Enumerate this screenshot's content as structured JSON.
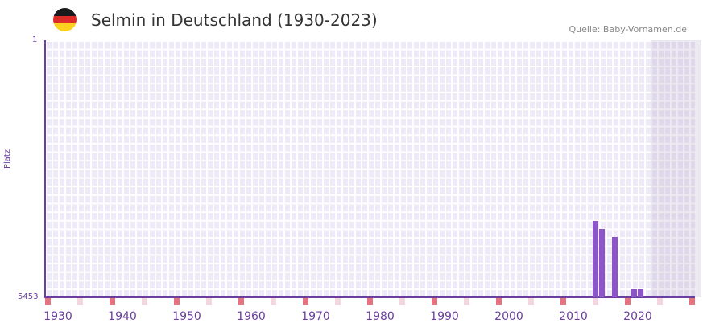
{
  "header": {
    "title": "Selmin in Deutschland (1930-2023)",
    "source": "Quelle: Baby-Vornamen.de"
  },
  "colors": {
    "bar": "#8e55c8",
    "axis": "#6b3fa0",
    "mark_red": "#e5737f",
    "mark_pink": "#f4d6e0",
    "flag": [
      "#1a1a1a",
      "#dd2a2a",
      "#fcd21f"
    ]
  },
  "chart_data": {
    "type": "bar",
    "title": "Selmin in Deutschland (1930-2023)",
    "xlabel": "",
    "ylabel": "Platz",
    "ylim": [
      5453,
      1
    ],
    "xlim": [
      1928,
      2029
    ],
    "y_ticks": [
      "1",
      "5453"
    ],
    "x_ticks": [
      "1930",
      "1940",
      "1950",
      "1960",
      "1970",
      "1980",
      "1990",
      "2000",
      "2010",
      "2020"
    ],
    "x": [
      2013,
      2014,
      2016,
      2019,
      2020
    ],
    "values": [
      3830,
      4000,
      4175,
      5280,
      5280
    ],
    "future_from": 2022
  }
}
